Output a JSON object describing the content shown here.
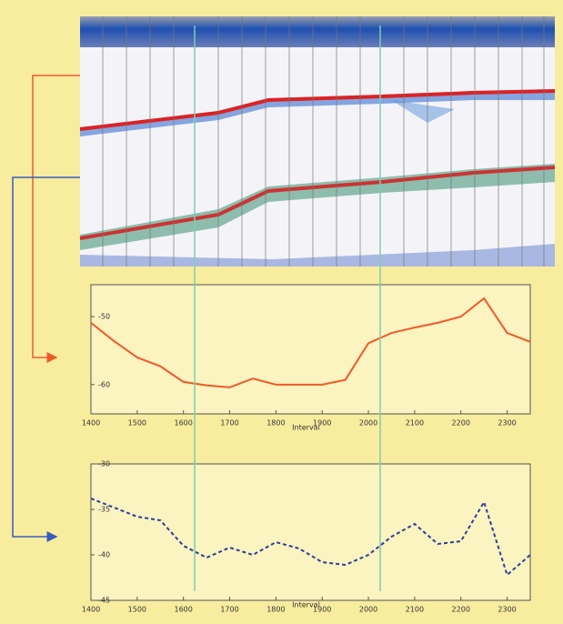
{
  "chart_data": [
    {
      "type": "line",
      "x_label": "Interval",
      "x": [
        1400,
        1450,
        1500,
        1550,
        1600,
        1650,
        1700,
        1750,
        1800,
        1850,
        1900,
        1950,
        2000,
        2050,
        2100,
        2150,
        2200,
        2250,
        2300,
        2350
      ],
      "series": [
        {
          "color": "#f05a28",
          "dashed": false,
          "values": [
            -50.9,
            -53.6,
            -56.0,
            -57.3,
            -59.6,
            -60.1,
            -60.4,
            -59.1,
            -60.0,
            -60.0,
            -60.0,
            -59.3,
            -53.9,
            -52.4,
            -51.6,
            -50.9,
            -50.0,
            -47.3,
            -52.4,
            -53.7
          ]
        }
      ],
      "xlim": [
        1400,
        2350
      ],
      "xticks": [
        1400,
        1500,
        1600,
        1700,
        1800,
        1900,
        2000,
        2100,
        2200,
        2300
      ],
      "ylim": [
        -64.3,
        -45.3
      ],
      "yticks": [
        -50,
        -60
      ]
    },
    {
      "type": "line",
      "x_label": "Interval",
      "x": [
        1400,
        1450,
        1500,
        1550,
        1600,
        1650,
        1700,
        1750,
        1800,
        1850,
        1900,
        1950,
        2000,
        2050,
        2100,
        2150,
        2200,
        2250,
        2300,
        2350
      ],
      "series": [
        {
          "color": "#2a3f9c",
          "dashed": true,
          "values": [
            -33.8,
            -34.8,
            -35.8,
            -36.2,
            -39.0,
            -40.3,
            -39.2,
            -40.0,
            -38.6,
            -39.3,
            -40.8,
            -41.1,
            -40.0,
            -38.0,
            -36.6,
            -38.8,
            -38.5,
            -34.2,
            -42.2,
            -40.0
          ]
        }
      ],
      "xlim": [
        1400,
        2350
      ],
      "xticks": [
        1400,
        1500,
        1600,
        1700,
        1800,
        1900,
        2000,
        2100,
        2200,
        2300
      ],
      "ylim": [
        -45,
        -30
      ],
      "yticks": [
        -30,
        -35,
        -40,
        -45
      ]
    }
  ]
}
